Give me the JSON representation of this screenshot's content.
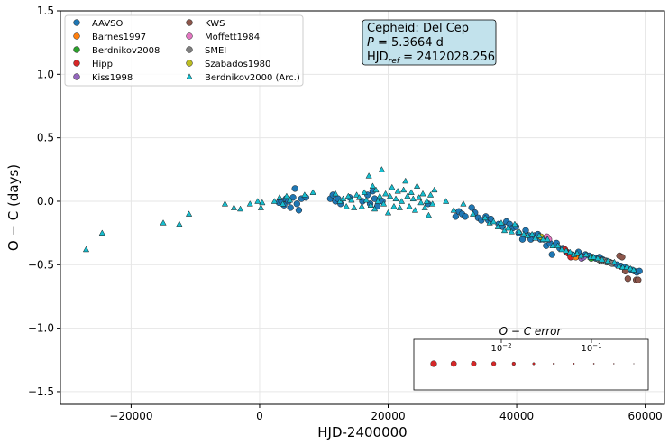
{
  "chart_data": {
    "type": "scatter",
    "xlabel": "HJD-2400000",
    "ylabel": "O − C (days)",
    "xlim": [
      -31000,
      63000
    ],
    "ylim": [
      -1.6,
      1.5
    ],
    "x_ticks": [
      -20000,
      0,
      20000,
      40000,
      60000
    ],
    "x_tick_labels": [
      "−20000",
      "0",
      "20000",
      "40000",
      "60000"
    ],
    "y_ticks": [
      -1.5,
      -1.0,
      -0.5,
      0.0,
      0.5,
      1.0,
      1.5
    ],
    "y_tick_labels": [
      "−1.5",
      "−1.0",
      "−0.5",
      "0.0",
      "0.5",
      "1.0",
      "1.5"
    ],
    "grid": true,
    "legend_position": "top-left",
    "info_box": {
      "line1": "Cepheid: Del Cep",
      "line2_prefix": "P",
      "line2_value": " = 5.3664 d",
      "line3_prefix": "HJD",
      "line3_sub": "ref",
      "line3_value": " = 2412028.256"
    },
    "inset": {
      "title": "O − C error",
      "tick_labels": [
        "10",
        "10"
      ],
      "tick_exponents": [
        "−2",
        "−1"
      ],
      "marker_sizes": [
        3.4,
        3.1,
        2.8,
        2.4,
        1.9,
        1.3,
        0.9,
        0.7,
        0.6,
        0.5,
        0.4
      ]
    },
    "series": [
      {
        "name": "AAVSO",
        "marker": "circle",
        "color": "#1f77b4",
        "points": [
          [
            3000,
            -0.01
          ],
          [
            3400,
            0.0
          ],
          [
            3800,
            -0.03
          ],
          [
            4100,
            0.02
          ],
          [
            4500,
            0.0
          ],
          [
            4800,
            -0.05
          ],
          [
            5200,
            0.03
          ],
          [
            5500,
            0.1
          ],
          [
            5800,
            -0.02
          ],
          [
            6100,
            -0.07
          ],
          [
            6500,
            0.02
          ],
          [
            7200,
            0.03
          ],
          [
            11000,
            0.02
          ],
          [
            11400,
            0.05
          ],
          [
            11800,
            0.0
          ],
          [
            12200,
            0.02
          ],
          [
            12600,
            -0.02
          ],
          [
            14000,
            0.03
          ],
          [
            16000,
            0.0
          ],
          [
            16800,
            0.05
          ],
          [
            17200,
            -0.02
          ],
          [
            17600,
            0.08
          ],
          [
            17900,
            0.02
          ],
          [
            18300,
            -0.04
          ],
          [
            18700,
            0.01
          ],
          [
            19100,
            0.0
          ],
          [
            26200,
            -0.02
          ],
          [
            30500,
            -0.12
          ],
          [
            31000,
            -0.08
          ],
          [
            31500,
            -0.1
          ],
          [
            32000,
            -0.12
          ],
          [
            33000,
            -0.05
          ],
          [
            33500,
            -0.09
          ],
          [
            34000,
            -0.13
          ],
          [
            34500,
            -0.15
          ],
          [
            35200,
            -0.12
          ],
          [
            35600,
            -0.15
          ],
          [
            36000,
            -0.14
          ],
          [
            37200,
            -0.18
          ],
          [
            37800,
            -0.2
          ],
          [
            38400,
            -0.16
          ],
          [
            38900,
            -0.18
          ],
          [
            39400,
            -0.21
          ],
          [
            39900,
            -0.2
          ],
          [
            40300,
            -0.25
          ],
          [
            40900,
            -0.3
          ],
          [
            41400,
            -0.23
          ],
          [
            41900,
            -0.27
          ],
          [
            42200,
            -0.3
          ],
          [
            42800,
            -0.27
          ],
          [
            43300,
            -0.26
          ],
          [
            43700,
            -0.3
          ],
          [
            44200,
            -0.3
          ],
          [
            44600,
            -0.35
          ],
          [
            45200,
            -0.33
          ],
          [
            45500,
            -0.42
          ],
          [
            46200,
            -0.33
          ],
          [
            46700,
            -0.37
          ],
          [
            47200,
            -0.37
          ],
          [
            47800,
            -0.4
          ],
          [
            48500,
            -0.42
          ],
          [
            49000,
            -0.43
          ],
          [
            49600,
            -0.4
          ],
          [
            50100,
            -0.44
          ],
          [
            50700,
            -0.42
          ],
          [
            51300,
            -0.43
          ],
          [
            51800,
            -0.44
          ],
          [
            52300,
            -0.45
          ],
          [
            52900,
            -0.44
          ],
          [
            53400,
            -0.46
          ],
          [
            53900,
            -0.47
          ],
          [
            54500,
            -0.48
          ],
          [
            55000,
            -0.49
          ],
          [
            55600,
            -0.5
          ],
          [
            56200,
            -0.51
          ],
          [
            56700,
            -0.52
          ],
          [
            57200,
            -0.53
          ],
          [
            57800,
            -0.54
          ],
          [
            58300,
            -0.55
          ],
          [
            58700,
            -0.56
          ],
          [
            59100,
            -0.55
          ]
        ]
      },
      {
        "name": "Barnes1997",
        "marker": "circle",
        "color": "#ff7f0e",
        "points": [
          [
            49200,
            -0.44
          ],
          [
            50300,
            -0.44
          ]
        ]
      },
      {
        "name": "Berdnikov2008",
        "marker": "circle",
        "color": "#2ca02c",
        "points": [
          [
            51600,
            -0.45
          ],
          [
            53100,
            -0.47
          ]
        ]
      },
      {
        "name": "Hipp",
        "marker": "circle",
        "color": "#d62728",
        "points": [
          [
            47500,
            -0.38
          ],
          [
            48000,
            -0.41
          ],
          [
            48400,
            -0.44
          ]
        ]
      },
      {
        "name": "Kiss1998",
        "marker": "circle",
        "color": "#9467bd",
        "points": [
          [
            50100,
            -0.45
          ],
          [
            50400,
            -0.44
          ]
        ]
      },
      {
        "name": "KWS",
        "marker": "circle",
        "color": "#8c564b",
        "points": [
          [
            56000,
            -0.43
          ],
          [
            56400,
            -0.44
          ],
          [
            56900,
            -0.55
          ],
          [
            57300,
            -0.61
          ],
          [
            58600,
            -0.62
          ],
          [
            58900,
            -0.62
          ]
        ]
      },
      {
        "name": "Moffett1984",
        "marker": "circle",
        "color": "#e377c2",
        "points": [
          [
            44700,
            -0.28
          ],
          [
            45000,
            -0.3
          ]
        ]
      },
      {
        "name": "SMEI",
        "marker": "circle",
        "color": "#7f7f7f",
        "points": [
          [
            52800,
            -0.46
          ],
          [
            53200,
            -0.47
          ],
          [
            53600,
            -0.47
          ],
          [
            54000,
            -0.48
          ],
          [
            54400,
            -0.48
          ],
          [
            54800,
            -0.49
          ]
        ]
      },
      {
        "name": "Szabados1980",
        "marker": "circle",
        "color": "#bcbd22",
        "points": [
          [
            43800,
            -0.28
          ]
        ]
      },
      {
        "name": "Berdnikov2000 (Arc.)",
        "marker": "triangle",
        "color": "#17becf",
        "points": [
          [
            -27000,
            -0.38
          ],
          [
            -24500,
            -0.25
          ],
          [
            -15000,
            -0.17
          ],
          [
            -12500,
            -0.18
          ],
          [
            -11000,
            -0.1
          ],
          [
            -5400,
            -0.02
          ],
          [
            -4000,
            -0.05
          ],
          [
            -3000,
            -0.06
          ],
          [
            -1500,
            -0.02
          ],
          [
            -300,
            0.0
          ],
          [
            200,
            -0.05
          ],
          [
            400,
            -0.01
          ],
          [
            2300,
            0.0
          ],
          [
            3100,
            0.03
          ],
          [
            3600,
            -0.02
          ],
          [
            4200,
            0.04
          ],
          [
            4700,
            0.01
          ],
          [
            7000,
            0.05
          ],
          [
            8300,
            0.07
          ],
          [
            11800,
            0.06
          ],
          [
            12500,
            0.0
          ],
          [
            13000,
            0.02
          ],
          [
            13500,
            -0.04
          ],
          [
            13800,
            0.04
          ],
          [
            14300,
            0.01
          ],
          [
            14700,
            -0.05
          ],
          [
            15100,
            0.05
          ],
          [
            15500,
            0.03
          ],
          [
            15900,
            -0.04
          ],
          [
            16300,
            0.07
          ],
          [
            16600,
            0.01
          ],
          [
            17000,
            0.2
          ],
          [
            17300,
            -0.03
          ],
          [
            17600,
            0.12
          ],
          [
            17900,
            -0.06
          ],
          [
            18100,
            0.09
          ],
          [
            18400,
            0.0
          ],
          [
            18700,
            0.04
          ],
          [
            19000,
            0.25
          ],
          [
            19300,
            -0.02
          ],
          [
            19600,
            0.06
          ],
          [
            20000,
            -0.09
          ],
          [
            20300,
            0.04
          ],
          [
            20600,
            0.11
          ],
          [
            20900,
            -0.04
          ],
          [
            21200,
            0.02
          ],
          [
            21500,
            0.08
          ],
          [
            21800,
            -0.05
          ],
          [
            22100,
            0.0
          ],
          [
            22400,
            0.09
          ],
          [
            22700,
            0.16
          ],
          [
            23000,
            0.04
          ],
          [
            23300,
            -0.04
          ],
          [
            23600,
            0.07
          ],
          [
            23900,
            0.02
          ],
          [
            24200,
            -0.07
          ],
          [
            24500,
            0.12
          ],
          [
            24800,
            0.03
          ],
          [
            25100,
            -0.01
          ],
          [
            25400,
            0.06
          ],
          [
            25700,
            -0.05
          ],
          [
            26000,
            0.0
          ],
          [
            26300,
            -0.11
          ],
          [
            26600,
            0.05
          ],
          [
            26900,
            -0.02
          ],
          [
            27200,
            0.09
          ],
          [
            29000,
            0.0
          ],
          [
            30200,
            -0.07
          ],
          [
            31700,
            -0.02
          ],
          [
            33200,
            -0.1
          ],
          [
            35100,
            -0.13
          ],
          [
            35800,
            -0.17
          ],
          [
            36400,
            -0.16
          ],
          [
            37100,
            -0.2
          ],
          [
            37600,
            -0.17
          ],
          [
            38100,
            -0.23
          ],
          [
            38700,
            -0.21
          ],
          [
            39200,
            -0.24
          ],
          [
            39700,
            -0.18
          ],
          [
            40400,
            -0.24
          ],
          [
            41100,
            -0.26
          ],
          [
            41700,
            -0.27
          ],
          [
            42400,
            -0.26
          ],
          [
            42900,
            -0.29
          ],
          [
            43500,
            -0.27
          ],
          [
            44100,
            -0.3
          ],
          [
            44800,
            -0.3
          ],
          [
            45600,
            -0.35
          ],
          [
            46400,
            -0.35
          ],
          [
            47000,
            -0.38
          ],
          [
            47700,
            -0.39
          ],
          [
            48300,
            -0.4
          ],
          [
            48900,
            -0.42
          ],
          [
            49400,
            -0.41
          ],
          [
            50000,
            -0.43
          ],
          [
            50800,
            -0.42
          ],
          [
            51500,
            -0.44
          ],
          [
            52000,
            -0.44
          ],
          [
            52600,
            -0.45
          ],
          [
            53300,
            -0.46
          ],
          [
            54200,
            -0.47
          ],
          [
            55200,
            -0.48
          ],
          [
            55900,
            -0.51
          ],
          [
            56500,
            -0.52
          ],
          [
            57100,
            -0.52
          ],
          [
            57700,
            -0.53
          ],
          [
            58200,
            -0.54
          ]
        ]
      }
    ]
  }
}
